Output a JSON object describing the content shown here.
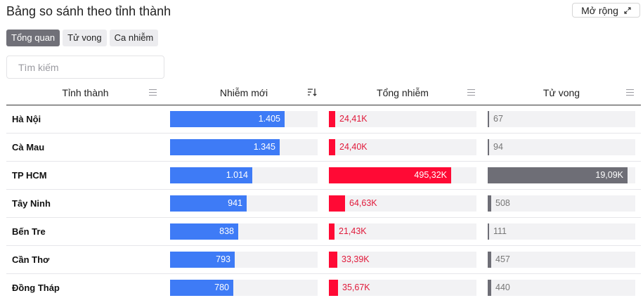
{
  "title": "Bảng so sánh theo tỉnh thành",
  "expand_label": "Mở rộng",
  "tabs": [
    "Tổng quan",
    "Tử vong",
    "Ca nhiễm"
  ],
  "active_tab": 0,
  "search": {
    "placeholder": "Tìm kiếm",
    "value": ""
  },
  "columns": {
    "province": "Tỉnh thành",
    "new_cases": "Nhiễm mới",
    "total_cases": "Tổng nhiễm",
    "deaths": "Tử vong"
  },
  "colors": {
    "new_cases": "#3e7bf6",
    "total_cases": "#ff0a35",
    "deaths": "#6e6e76",
    "track": "#f2f2f4"
  },
  "max": {
    "new_cases": 1814,
    "total_cases": 597,
    "deaths": 20.16
  },
  "rows": [
    {
      "province": "Hà Nội",
      "new_cases": 1405,
      "new_cases_label": "1.405",
      "total_cases": 24.41,
      "total_cases_label": "24,41K",
      "deaths": 0.067,
      "deaths_label": "67"
    },
    {
      "province": "Cà Mau",
      "new_cases": 1345,
      "new_cases_label": "1.345",
      "total_cases": 24.4,
      "total_cases_label": "24,40K",
      "deaths": 0.094,
      "deaths_label": "94"
    },
    {
      "province": "TP HCM",
      "new_cases": 1014,
      "new_cases_label": "1.014",
      "total_cases": 495.32,
      "total_cases_label": "495,32K",
      "deaths": 19.09,
      "deaths_label": "19,09K"
    },
    {
      "province": "Tây Ninh",
      "new_cases": 941,
      "new_cases_label": "941",
      "total_cases": 64.63,
      "total_cases_label": "64,63K",
      "deaths": 0.508,
      "deaths_label": "508"
    },
    {
      "province": "Bến Tre",
      "new_cases": 838,
      "new_cases_label": "838",
      "total_cases": 21.43,
      "total_cases_label": "21,43K",
      "deaths": 0.111,
      "deaths_label": "111"
    },
    {
      "province": "Cần Thơ",
      "new_cases": 793,
      "new_cases_label": "793",
      "total_cases": 33.39,
      "total_cases_label": "33,39K",
      "deaths": 0.457,
      "deaths_label": "457"
    },
    {
      "province": "Đồng Tháp",
      "new_cases": 780,
      "new_cases_label": "780",
      "total_cases": 35.67,
      "total_cases_label": "35,67K",
      "deaths": 0.44,
      "deaths_label": "440"
    }
  ]
}
